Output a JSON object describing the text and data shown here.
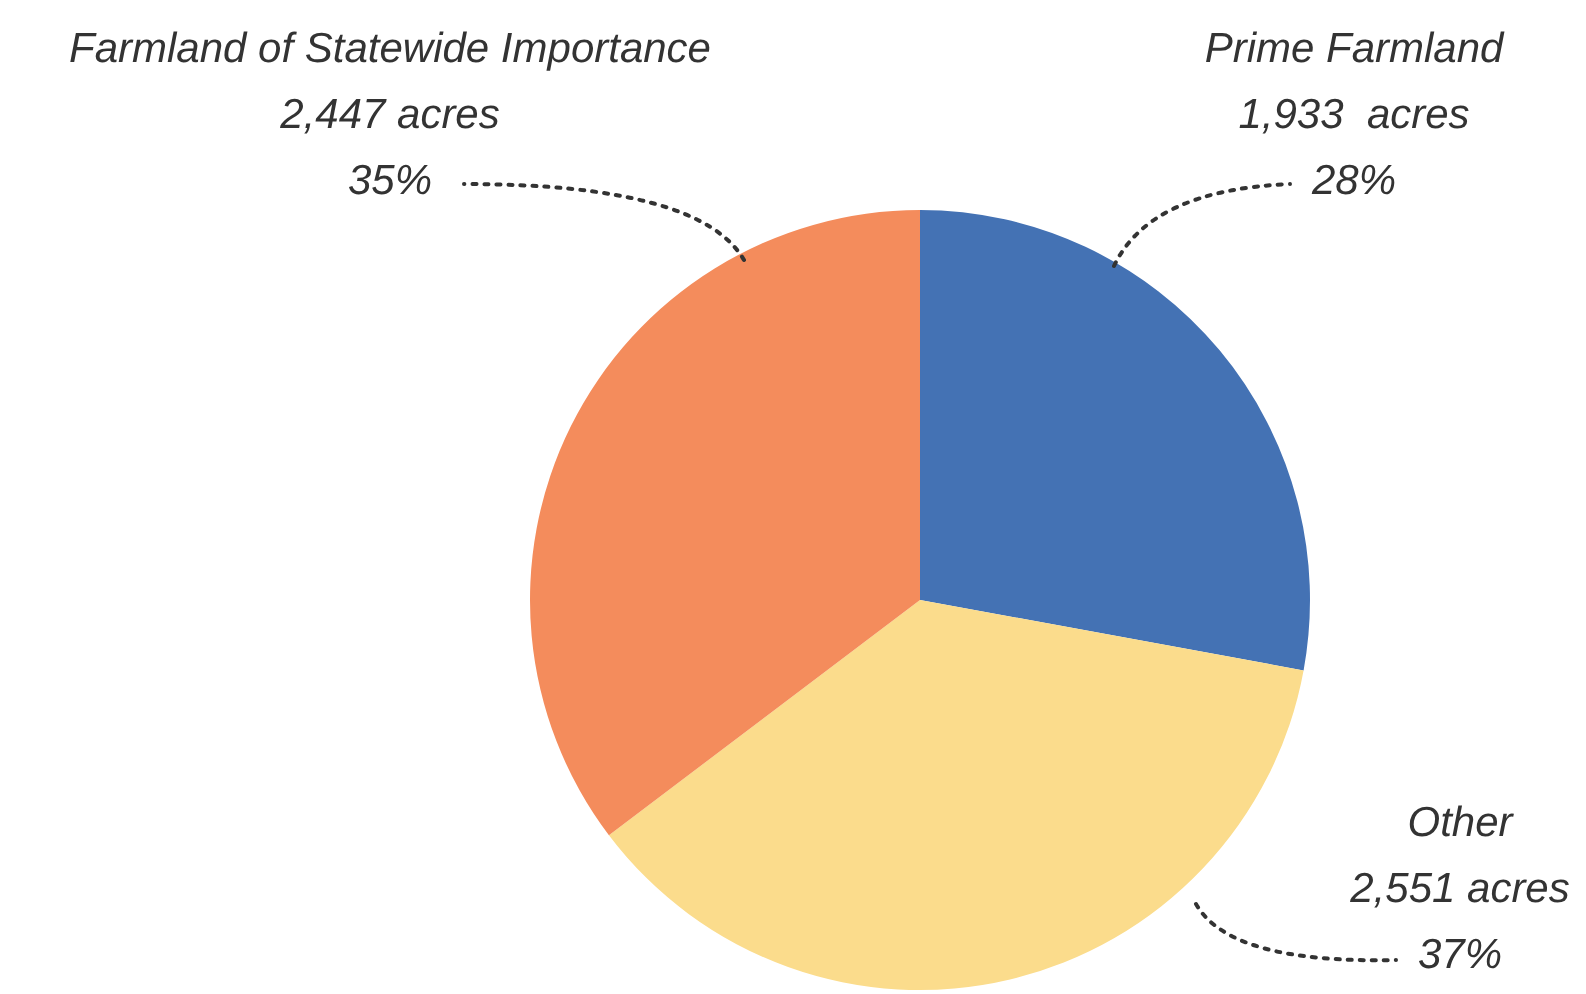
{
  "chart_data": {
    "type": "pie",
    "categories": [
      "Prime Farmland",
      "Other",
      "Farmland of Statewide Importance"
    ],
    "values": [
      1933,
      2551,
      2447
    ],
    "colors": [
      "#4472b4",
      "#fbdc8c",
      "#f48c5c"
    ],
    "value_labels": [
      "1,933  acres\n28%",
      "2,551 acres\n37%",
      "2,447 acres\n35%"
    ],
    "legend": false
  }
}
